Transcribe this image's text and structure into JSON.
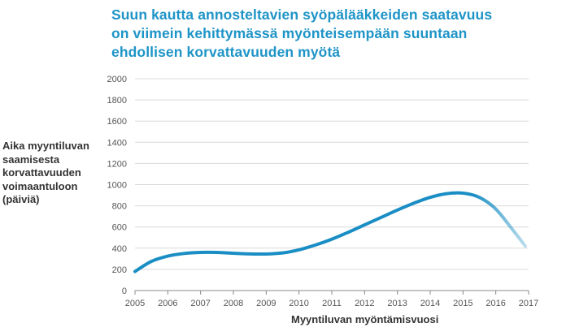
{
  "title_lines": [
    "Suun kautta annosteltavien syöpälääkkeiden saatavuus",
    "on viimein kehittymässä myönteisempään suuntaan",
    "ehdollisen korvattavuuden myötä"
  ],
  "colors": {
    "title": "#1e94c7",
    "line": "#1a8ec4",
    "grid": "#d9d9d9",
    "axis": "#888888",
    "text": "#333333"
  },
  "chart_data": {
    "type": "line",
    "ylabel_lines": [
      "Aika myyntiluvan",
      "saamisesta",
      "korvattavuuden",
      "voimaantuloon",
      "(päiviä)"
    ],
    "xlabel": "Myyntiluvan myöntämisvuosi",
    "xlim": [
      2005,
      2017
    ],
    "ylim": [
      0,
      2000
    ],
    "grid": true,
    "xticks": [
      "2005",
      "2006",
      "2007",
      "2008",
      "2009",
      "2010",
      "2011",
      "2012",
      "2013",
      "2014",
      "2015",
      "2016",
      "2017"
    ],
    "yticks": [
      "0",
      "200",
      "400",
      "600",
      "800",
      "1000",
      "1200",
      "1400",
      "1600",
      "1800",
      "2000"
    ],
    "series": [
      {
        "x": [
          2005.0,
          2005.5,
          2006.0,
          2006.5,
          2007.0,
          2007.5,
          2008.0,
          2008.5,
          2009.0,
          2009.5,
          2010.0,
          2010.5,
          2011.0,
          2011.5,
          2012.0,
          2012.5,
          2013.0,
          2013.5,
          2014.0,
          2014.5,
          2015.0,
          2015.5,
          2016.0,
          2016.5,
          2016.9
        ],
        "y": [
          180,
          275,
          325,
          350,
          360,
          360,
          352,
          346,
          345,
          355,
          385,
          430,
          485,
          550,
          620,
          690,
          760,
          825,
          880,
          915,
          920,
          880,
          770,
          580,
          420
        ]
      }
    ]
  }
}
